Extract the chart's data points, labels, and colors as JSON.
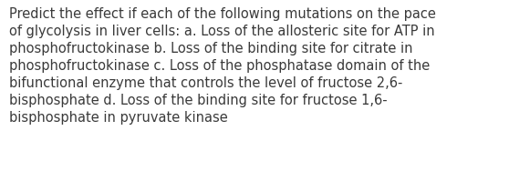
{
  "lines": [
    "Predict the effect if each of the following mutations on the pace",
    "of glycolysis in liver cells: a. Loss of the allosteric site for ATP in",
    "phosphofructokinase b. Loss of the binding site for citrate in",
    "phosphofructokinase c. Loss of the phosphatase domain of the",
    "bifunctional enzyme that controls the level of fructose 2,6-",
    "bisphosphate d. Loss of the binding site for fructose 1,6-",
    "bisphosphate in pyruvate kinase"
  ],
  "background_color": "#ffffff",
  "text_color": "#3a3a3a",
  "font_size": 10.5,
  "fig_width": 5.58,
  "fig_height": 1.88,
  "dpi": 100
}
